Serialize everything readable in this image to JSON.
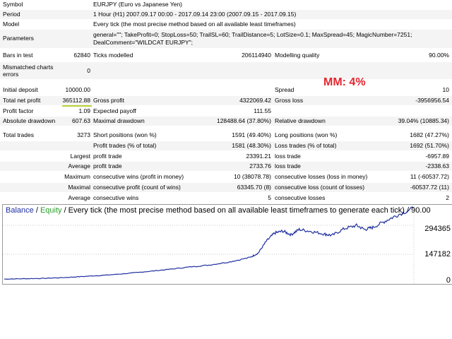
{
  "report": {
    "symbol": {
      "label": "Symbol",
      "value": "EURJPY (Euro vs Japanese Yen)"
    },
    "period": {
      "label": "Period",
      "value": "1 Hour (H1) 2007.09.17 00:00 - 2017.09.14 23:00 (2007.09.15 - 2017.09.15)"
    },
    "model": {
      "label": "Model",
      "value": "Every tick (the most precise method based on all available least timeframes)"
    },
    "parameters": {
      "label": "Parameters",
      "line1": "general=\"\"; TakeProfit=0; StopLoss=50; TrailSL=60; TrailDistance=5; LotSize=0.1; MaxSpread=45; MagicNumber=7251;",
      "line2": "DealComment=\"WILDCAT EURJPY\";"
    },
    "bars_in_test": {
      "label": "Bars in test",
      "value": "62840"
    },
    "ticks_modelled": {
      "label": "Ticks modelled",
      "value": "206114940"
    },
    "modelling_quality": {
      "label": "Modelling quality",
      "value": "90.00%"
    },
    "mismatched": {
      "label1": "Mismatched charts",
      "label2": "errors",
      "value": "0"
    },
    "initial_deposit": {
      "label": "Initial deposit",
      "value": "10000.00"
    },
    "spread": {
      "label": "Spread",
      "value": "10"
    },
    "total_net_profit": {
      "label": "Total net profit",
      "value": "365112.88"
    },
    "gross_profit": {
      "label": "Gross profit",
      "value": "4322069.42"
    },
    "gross_loss": {
      "label": "Gross loss",
      "value": "-3956956.54"
    },
    "profit_factor": {
      "label": "Profit factor",
      "value": "1.09"
    },
    "expected_payoff": {
      "label": "Expected payoff",
      "value": "111.55"
    },
    "absolute_drawdown": {
      "label": "Absolute drawdown",
      "value": "607.63"
    },
    "maximal_drawdown": {
      "label": "Maximal drawdown",
      "value": "128488.64 (37.80%)"
    },
    "relative_drawdown": {
      "label": "Relative drawdown",
      "value": "39.04% (10885.34)"
    },
    "total_trades": {
      "label": "Total trades",
      "value": "3273"
    },
    "short_positions": {
      "label": "Short positions (won %)",
      "value": "1591 (49.40%)"
    },
    "long_positions": {
      "label": "Long positions (won %)",
      "value": "1682 (47.27%)"
    },
    "profit_trades": {
      "label": "Profit trades (% of total)",
      "value": "1581 (48.30%)"
    },
    "loss_trades": {
      "label": "Loss trades (% of total)",
      "value": "1692 (51.70%)"
    },
    "largest": {
      "label": "Largest",
      "profit_label": "profit trade",
      "profit_value": "23391.21",
      "loss_label": "loss trade",
      "loss_value": "-6957.89"
    },
    "average": {
      "label": "Average",
      "profit_label": "profit trade",
      "profit_value": "2733.76",
      "loss_label": "loss trade",
      "loss_value": "-2338.63"
    },
    "maximum": {
      "label": "Maximum",
      "wins_label": "consecutive wins (profit in money)",
      "wins_value": "10 (38078.78)",
      "losses_label": "consecutive losses (loss in money)",
      "losses_value": "11 (-60537.72)"
    },
    "maximal": {
      "label": "Maximal",
      "profit_label": "consecutive profit (count of wins)",
      "profit_value": "63345.70 (8)",
      "loss_label": "consecutive loss (count of losses)",
      "loss_value": "-60537.72 (11)"
    },
    "average_consec": {
      "label": "Average",
      "wins_label": "consecutive wins",
      "wins_value": "5",
      "losses_label": "consecutive losses",
      "losses_value": "2"
    }
  },
  "annotation": {
    "mm": "MM: 4%"
  },
  "chart": {
    "legend_balance": "Balance",
    "legend_sep": " / ",
    "legend_equity": "Equity",
    "legend_rest": " / Every tick (the most precise method based on all available least timeframes to generate each tick) / 90.00",
    "balance_color": "#1f2f9f",
    "equity_color": "#2a9d2a"
  },
  "chart_data": {
    "type": "line",
    "y_ticks": [
      "294365",
      "147182",
      "0"
    ],
    "ylim": [
      0,
      360000
    ],
    "series": [
      {
        "name": "Balance",
        "x": [
          0,
          5,
          10,
          15,
          20,
          25,
          30,
          35,
          40,
          45,
          50,
          55,
          60,
          62,
          64,
          66,
          68,
          70,
          72,
          75,
          78,
          80,
          83,
          86,
          88,
          90,
          93,
          96,
          100
        ],
        "values": [
          10000,
          12000,
          14000,
          18000,
          24000,
          30000,
          38000,
          48000,
          58000,
          70000,
          80000,
          96000,
          118000,
          140000,
          200000,
          240000,
          250000,
          232000,
          258000,
          248000,
          236000,
          228000,
          262000,
          278000,
          258000,
          268000,
          300000,
          330000,
          365113
        ]
      }
    ]
  }
}
